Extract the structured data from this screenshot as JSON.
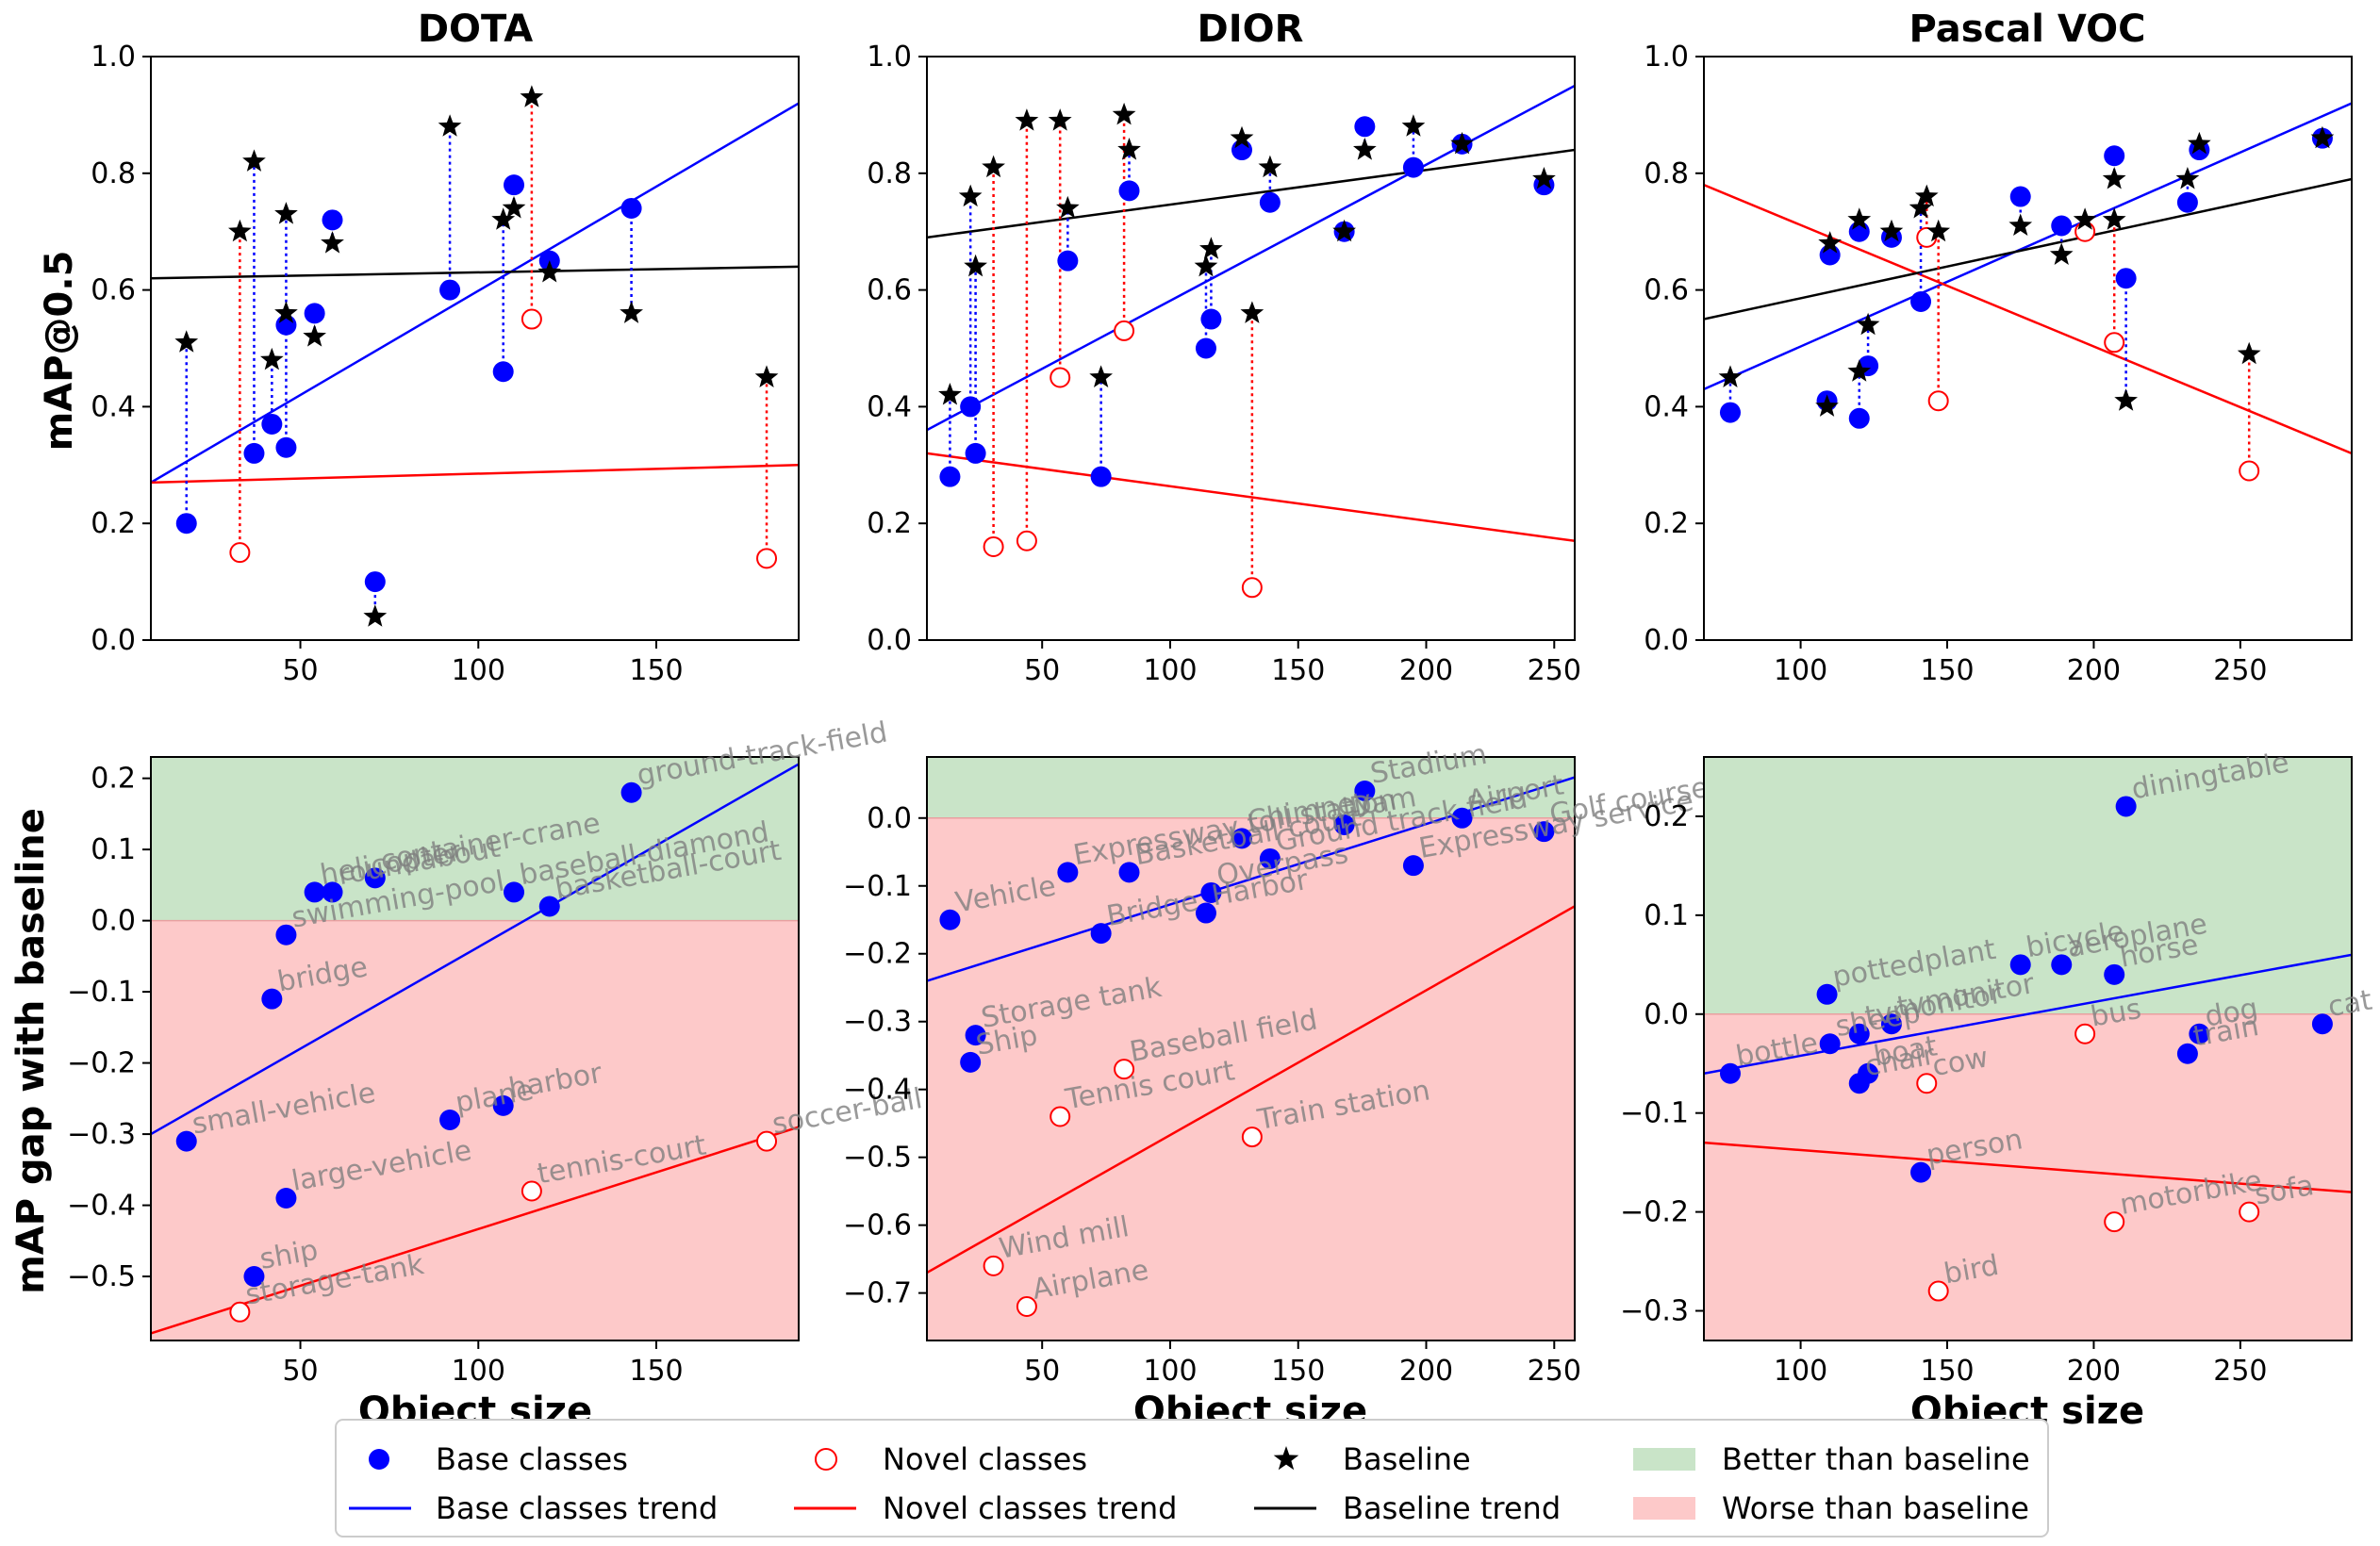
{
  "figure": {
    "ylabel_top": "mAP@0.5",
    "ylabel_bottom": "mAP gap with baseline",
    "xlabel": "Object size"
  },
  "legend": {
    "base_classes": "Base classes",
    "novel_classes": "Novel classes",
    "baseline": "Baseline",
    "better": "Better than baseline",
    "base_trend": "Base classes trend",
    "novel_trend": "Novel classes trend",
    "baseline_trend": "Baseline trend",
    "worse": "Worse than baseline"
  },
  "colors": {
    "base": "#0000ff",
    "novel": "#ff0000",
    "baseline": "#000000",
    "better_fill": "#c9e4c8",
    "worse_fill": "#fdc9c9",
    "annotation": "#7f7f7f"
  },
  "chart_data": [
    {
      "type": "scatter",
      "title": "DOTA",
      "xlabel": "",
      "ylabel": "mAP@0.5",
      "xlim": [
        8,
        190
      ],
      "ylim": [
        0,
        1.0
      ],
      "xticks": [
        50,
        100,
        150
      ],
      "yticks": [
        0.0,
        0.2,
        0.4,
        0.6,
        0.8,
        1.0
      ],
      "base": [
        {
          "x": 18,
          "y": 0.2,
          "baseline": 0.51
        },
        {
          "x": 37,
          "y": 0.32,
          "baseline": 0.82
        },
        {
          "x": 42,
          "y": 0.37,
          "baseline": 0.48
        },
        {
          "x": 46,
          "y": 0.33,
          "baseline": 0.73
        },
        {
          "x": 46,
          "y": 0.54,
          "baseline": 0.56
        },
        {
          "x": 54,
          "y": 0.56,
          "baseline": 0.52
        },
        {
          "x": 59,
          "y": 0.72,
          "baseline": 0.68
        },
        {
          "x": 71,
          "y": 0.1,
          "baseline": 0.04
        },
        {
          "x": 92,
          "y": 0.6,
          "baseline": 0.88
        },
        {
          "x": 107,
          "y": 0.46,
          "baseline": 0.72
        },
        {
          "x": 110,
          "y": 0.78,
          "baseline": 0.74
        },
        {
          "x": 120,
          "y": 0.65,
          "baseline": 0.63
        },
        {
          "x": 143,
          "y": 0.74,
          "baseline": 0.56
        }
      ],
      "novel": [
        {
          "x": 33,
          "y": 0.15,
          "baseline": 0.7
        },
        {
          "x": 115,
          "y": 0.55,
          "baseline": 0.93
        },
        {
          "x": 181,
          "y": 0.14,
          "baseline": 0.45
        }
      ],
      "trends": {
        "base": [
          [
            8,
            0.27
          ],
          [
            190,
            0.92
          ]
        ],
        "novel": [
          [
            8,
            0.27
          ],
          [
            190,
            0.3
          ]
        ],
        "baseline": [
          [
            8,
            0.62
          ],
          [
            190,
            0.64
          ]
        ]
      }
    },
    {
      "type": "scatter",
      "title": "DIOR",
      "xlabel": "",
      "ylabel": "",
      "xlim": [
        5,
        258
      ],
      "ylim": [
        0,
        1.0
      ],
      "xticks": [
        50,
        100,
        150,
        200,
        250
      ],
      "yticks": [
        0.0,
        0.2,
        0.4,
        0.6,
        0.8,
        1.0
      ],
      "base": [
        {
          "x": 14,
          "y": 0.28,
          "baseline": 0.42
        },
        {
          "x": 22,
          "y": 0.4,
          "baseline": 0.76
        },
        {
          "x": 24,
          "y": 0.32,
          "baseline": 0.64
        },
        {
          "x": 60,
          "y": 0.65,
          "baseline": 0.74
        },
        {
          "x": 73,
          "y": 0.28,
          "baseline": 0.45
        },
        {
          "x": 84,
          "y": 0.77,
          "baseline": 0.84
        },
        {
          "x": 114,
          "y": 0.5,
          "baseline": 0.64
        },
        {
          "x": 116,
          "y": 0.55,
          "baseline": 0.67
        },
        {
          "x": 128,
          "y": 0.84,
          "baseline": 0.86
        },
        {
          "x": 139,
          "y": 0.75,
          "baseline": 0.81
        },
        {
          "x": 168,
          "y": 0.7,
          "baseline": 0.7
        },
        {
          "x": 176,
          "y": 0.88,
          "baseline": 0.84
        },
        {
          "x": 195,
          "y": 0.81,
          "baseline": 0.88
        },
        {
          "x": 214,
          "y": 0.85,
          "baseline": 0.85
        },
        {
          "x": 246,
          "y": 0.78,
          "baseline": 0.79
        }
      ],
      "novel": [
        {
          "x": 31,
          "y": 0.16,
          "baseline": 0.81
        },
        {
          "x": 44,
          "y": 0.17,
          "baseline": 0.89
        },
        {
          "x": 57,
          "y": 0.45,
          "baseline": 0.89
        },
        {
          "x": 82,
          "y": 0.53,
          "baseline": 0.9
        },
        {
          "x": 132,
          "y": 0.09,
          "baseline": 0.56
        }
      ],
      "trends": {
        "base": [
          [
            5,
            0.36
          ],
          [
            258,
            0.95
          ]
        ],
        "novel": [
          [
            5,
            0.32
          ],
          [
            258,
            0.17
          ]
        ],
        "baseline": [
          [
            5,
            0.69
          ],
          [
            258,
            0.84
          ]
        ]
      }
    },
    {
      "type": "scatter",
      "title": "Pascal VOC",
      "xlabel": "",
      "ylabel": "",
      "xlim": [
        67,
        288
      ],
      "ylim": [
        0,
        1.0
      ],
      "xticks": [
        100,
        150,
        200,
        250
      ],
      "yticks": [
        0.0,
        0.2,
        0.4,
        0.6,
        0.8,
        1.0
      ],
      "base": [
        {
          "x": 76,
          "y": 0.39,
          "baseline": 0.45
        },
        {
          "x": 109,
          "y": 0.41,
          "baseline": 0.4
        },
        {
          "x": 110,
          "y": 0.66,
          "baseline": 0.68
        },
        {
          "x": 120,
          "y": 0.7,
          "baseline": 0.72
        },
        {
          "x": 120,
          "y": 0.38,
          "baseline": 0.46
        },
        {
          "x": 123,
          "y": 0.47,
          "baseline": 0.54
        },
        {
          "x": 131,
          "y": 0.69,
          "baseline": 0.7
        },
        {
          "x": 141,
          "y": 0.58,
          "baseline": 0.74
        },
        {
          "x": 175,
          "y": 0.76,
          "baseline": 0.71
        },
        {
          "x": 189,
          "y": 0.71,
          "baseline": 0.66
        },
        {
          "x": 207,
          "y": 0.83,
          "baseline": 0.79
        },
        {
          "x": 211,
          "y": 0.62,
          "baseline": 0.41
        },
        {
          "x": 232,
          "y": 0.75,
          "baseline": 0.79
        },
        {
          "x": 236,
          "y": 0.84,
          "baseline": 0.85
        },
        {
          "x": 278,
          "y": 0.86,
          "baseline": 0.86
        }
      ],
      "novel": [
        {
          "x": 143,
          "y": 0.69,
          "baseline": 0.76
        },
        {
          "x": 147,
          "y": 0.41,
          "baseline": 0.7
        },
        {
          "x": 197,
          "y": 0.7,
          "baseline": 0.72
        },
        {
          "x": 207,
          "y": 0.51,
          "baseline": 0.72
        },
        {
          "x": 253,
          "y": 0.29,
          "baseline": 0.49
        }
      ],
      "trends": {
        "base": [
          [
            67,
            0.43
          ],
          [
            288,
            0.92
          ]
        ],
        "novel": [
          [
            67,
            0.78
          ],
          [
            288,
            0.32
          ]
        ],
        "baseline": [
          [
            67,
            0.55
          ],
          [
            288,
            0.79
          ]
        ]
      }
    },
    {
      "type": "scatter",
      "title": "",
      "xlabel": "Object size",
      "ylabel": "mAP gap with baseline",
      "xlim": [
        8,
        190
      ],
      "ylim": [
        -0.59,
        0.23
      ],
      "xticks": [
        50,
        100,
        150
      ],
      "yticks": [
        -0.5,
        -0.4,
        -0.3,
        -0.2,
        -0.1,
        0.0,
        0.1,
        0.2
      ],
      "base": [
        {
          "x": 18,
          "y": -0.31,
          "label": "small-vehicle"
        },
        {
          "x": 37,
          "y": -0.5,
          "label": "ship"
        },
        {
          "x": 42,
          "y": -0.11,
          "label": "bridge"
        },
        {
          "x": 46,
          "y": -0.39,
          "label": "large-vehicle"
        },
        {
          "x": 46,
          "y": -0.02,
          "label": "swimming-pool"
        },
        {
          "x": 54,
          "y": 0.04,
          "label": "helicopter"
        },
        {
          "x": 59,
          "y": 0.04,
          "label": "roundabout"
        },
        {
          "x": 71,
          "y": 0.06,
          "label": "container-crane"
        },
        {
          "x": 92,
          "y": -0.28,
          "label": "plane"
        },
        {
          "x": 107,
          "y": -0.26,
          "label": "harbor"
        },
        {
          "x": 110,
          "y": 0.04,
          "label": "baseball-diamond"
        },
        {
          "x": 120,
          "y": 0.02,
          "label": "basketball-court"
        },
        {
          "x": 143,
          "y": 0.18,
          "label": "ground-track-field"
        }
      ],
      "novel": [
        {
          "x": 33,
          "y": -0.55,
          "label": "storage-tank"
        },
        {
          "x": 115,
          "y": -0.38,
          "label": "tennis-court"
        },
        {
          "x": 181,
          "y": -0.31,
          "label": "soccer-ball"
        }
      ],
      "trends": {
        "base": [
          [
            8,
            -0.3
          ],
          [
            190,
            0.22
          ]
        ],
        "novel": [
          [
            8,
            -0.58
          ],
          [
            190,
            -0.29
          ]
        ]
      }
    },
    {
      "type": "scatter",
      "title": "",
      "xlabel": "Object size",
      "ylabel": "",
      "xlim": [
        5,
        258
      ],
      "ylim": [
        -0.77,
        0.09
      ],
      "xticks": [
        50,
        100,
        150,
        200,
        250
      ],
      "yticks": [
        -0.7,
        -0.6,
        -0.5,
        -0.4,
        -0.3,
        -0.2,
        -0.1,
        0.0
      ],
      "base": [
        {
          "x": 14,
          "y": -0.15,
          "label": "Vehicle"
        },
        {
          "x": 22,
          "y": -0.36,
          "label": "Ship"
        },
        {
          "x": 24,
          "y": -0.32,
          "label": "Storage tank"
        },
        {
          "x": 60,
          "y": -0.08,
          "label": "Expressway toll station"
        },
        {
          "x": 73,
          "y": -0.17,
          "label": "Bridge"
        },
        {
          "x": 84,
          "y": -0.08,
          "label": "Basketball court"
        },
        {
          "x": 114,
          "y": -0.14,
          "label": "Harbor"
        },
        {
          "x": 116,
          "y": -0.11,
          "label": "Overpass"
        },
        {
          "x": 128,
          "y": -0.03,
          "label": "Chimney"
        },
        {
          "x": 139,
          "y": -0.06,
          "label": "Ground track field"
        },
        {
          "x": 168,
          "y": -0.01,
          "label": "Dam"
        },
        {
          "x": 176,
          "y": 0.04,
          "label": "Stadium"
        },
        {
          "x": 195,
          "y": -0.07,
          "label": "Expressway service area"
        },
        {
          "x": 214,
          "y": 0.0,
          "label": "Airport"
        },
        {
          "x": 246,
          "y": -0.02,
          "label": "Golf course"
        }
      ],
      "novel": [
        {
          "x": 31,
          "y": -0.66,
          "label": "Wind mill"
        },
        {
          "x": 44,
          "y": -0.72,
          "label": "Airplane"
        },
        {
          "x": 57,
          "y": -0.44,
          "label": "Tennis court"
        },
        {
          "x": 82,
          "y": -0.37,
          "label": "Baseball field"
        },
        {
          "x": 132,
          "y": -0.47,
          "label": "Train station"
        }
      ],
      "trends": {
        "base": [
          [
            5,
            -0.24
          ],
          [
            258,
            0.06
          ]
        ],
        "novel": [
          [
            5,
            -0.67
          ],
          [
            258,
            -0.13
          ]
        ]
      }
    },
    {
      "type": "scatter",
      "title": "",
      "xlabel": "Object size",
      "ylabel": "",
      "xlim": [
        67,
        288
      ],
      "ylim": [
        -0.33,
        0.26
      ],
      "xticks": [
        100,
        150,
        200,
        250
      ],
      "yticks": [
        -0.3,
        -0.2,
        -0.1,
        0.0,
        0.1,
        0.2
      ],
      "base": [
        {
          "x": 76,
          "y": -0.06,
          "label": "bottle"
        },
        {
          "x": 109,
          "y": 0.02,
          "label": "pottedplant"
        },
        {
          "x": 110,
          "y": -0.03,
          "label": "sheep"
        },
        {
          "x": 120,
          "y": -0.02,
          "label": "tvmonitor"
        },
        {
          "x": 120,
          "y": -0.07,
          "label": "chair"
        },
        {
          "x": 123,
          "y": -0.06,
          "label": "boat"
        },
        {
          "x": 131,
          "y": -0.01,
          "label": "tvmonitor"
        },
        {
          "x": 141,
          "y": -0.16,
          "label": "person"
        },
        {
          "x": 175,
          "y": 0.05,
          "label": "bicycle"
        },
        {
          "x": 189,
          "y": 0.05,
          "label": "aeroplane"
        },
        {
          "x": 207,
          "y": 0.04,
          "label": "horse"
        },
        {
          "x": 211,
          "y": 0.21,
          "label": "diningtable"
        },
        {
          "x": 232,
          "y": -0.04,
          "label": "train"
        },
        {
          "x": 236,
          "y": -0.02,
          "label": "dog"
        },
        {
          "x": 278,
          "y": -0.01,
          "label": "cat"
        }
      ],
      "novel": [
        {
          "x": 143,
          "y": -0.07,
          "label": "cow"
        },
        {
          "x": 147,
          "y": -0.28,
          "label": "bird"
        },
        {
          "x": 197,
          "y": -0.02,
          "label": "bus"
        },
        {
          "x": 207,
          "y": -0.21,
          "label": "motorbike"
        },
        {
          "x": 253,
          "y": -0.2,
          "label": "sofa"
        }
      ],
      "trends": {
        "base": [
          [
            67,
            -0.06
          ],
          [
            288,
            0.06
          ]
        ],
        "novel": [
          [
            67,
            -0.13
          ],
          [
            288,
            -0.18
          ]
        ]
      }
    }
  ]
}
